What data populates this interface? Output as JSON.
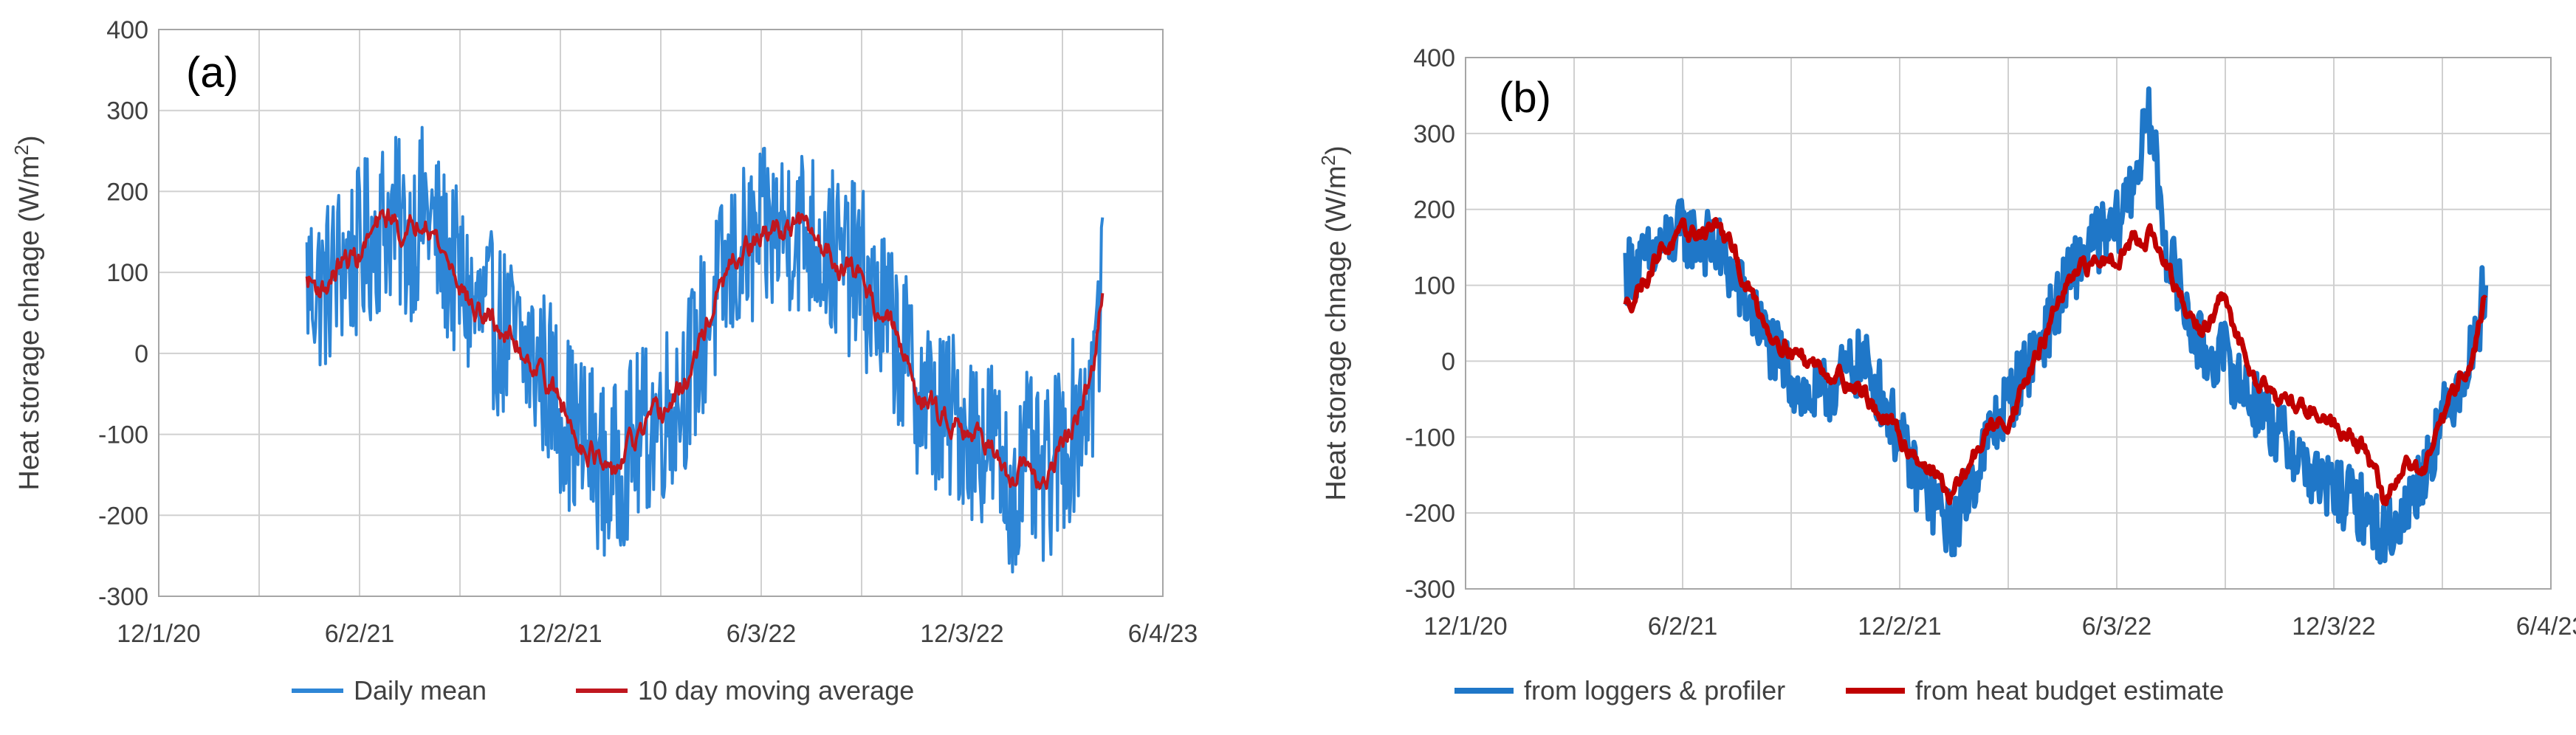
{
  "chart_data": [
    {
      "type": "line",
      "panel_label": "(a)",
      "xlabel": "",
      "ylabel": "Heat storage chnage (W/m²)",
      "ylabel_text": "Heat storage chnage (W/m",
      "ylabel_sup": "2",
      "ylabel_close": ")",
      "ylim": [
        -300,
        400
      ],
      "yticks": [
        -300,
        -200,
        -100,
        0,
        100,
        200,
        300,
        400
      ],
      "ytick_labels": [
        "-300",
        "-200",
        "-100",
        "0",
        "100",
        "200",
        "300",
        "400"
      ],
      "xlim": [
        "2020-12-01",
        "2023-06-04"
      ],
      "xticks": [
        "2020-12-01",
        "2021-06-02",
        "2021-12-02",
        "2022-06-03",
        "2022-12-03",
        "2023-06-04"
      ],
      "xtick_labels": [
        "12/1/20",
        "6/2/21",
        "12/2/21",
        "6/3/22",
        "12/3/22",
        "6/4/23"
      ],
      "grid": true,
      "legend_position": "bottom",
      "series": [
        {
          "name": "Daily mean",
          "color": "#2e86d6",
          "noisy": true,
          "x": [
            "2021-04-15",
            "2021-05-01",
            "2021-05-15",
            "2021-06-01",
            "2021-06-15",
            "2021-07-01",
            "2021-07-15",
            "2021-08-01",
            "2021-08-15",
            "2021-09-01",
            "2021-09-15",
            "2021-10-01",
            "2021-10-15",
            "2021-11-01",
            "2021-11-15",
            "2021-12-01",
            "2021-12-15",
            "2022-01-01",
            "2022-01-15",
            "2022-02-01",
            "2022-02-15",
            "2022-03-01",
            "2022-03-15",
            "2022-04-01",
            "2022-04-15",
            "2022-05-01",
            "2022-05-15",
            "2022-06-01",
            "2022-06-15",
            "2022-07-01",
            "2022-07-15",
            "2022-08-01",
            "2022-08-15",
            "2022-09-01",
            "2022-09-15",
            "2022-10-01",
            "2022-10-15",
            "2022-11-01",
            "2022-11-15",
            "2022-12-01",
            "2022-12-15",
            "2023-01-01",
            "2023-01-15",
            "2023-02-01",
            "2023-02-15",
            "2023-03-01",
            "2023-03-15",
            "2023-04-01",
            "2023-04-10"
          ],
          "y": [
            90,
            80,
            110,
            120,
            150,
            170,
            140,
            180,
            130,
            90,
            50,
            40,
            20,
            0,
            -20,
            -60,
            -100,
            -120,
            -160,
            -120,
            -100,
            -80,
            -60,
            -20,
            40,
            90,
            120,
            140,
            150,
            160,
            150,
            130,
            110,
            100,
            60,
            30,
            -20,
            -60,
            -80,
            -80,
            -100,
            -110,
            -180,
            -130,
            -170,
            -120,
            -90,
            -30,
            80
          ],
          "amplitude": 110
        },
        {
          "name": "10 day moving average",
          "color": "#c0171f",
          "noisy": false,
          "x": [
            "2021-04-15",
            "2021-05-01",
            "2021-05-15",
            "2021-06-01",
            "2021-06-15",
            "2021-07-01",
            "2021-07-15",
            "2021-08-01",
            "2021-08-15",
            "2021-09-01",
            "2021-09-15",
            "2021-10-01",
            "2021-10-15",
            "2021-11-01",
            "2021-11-15",
            "2021-12-01",
            "2021-12-15",
            "2022-01-01",
            "2022-01-15",
            "2022-02-01",
            "2022-02-15",
            "2022-03-01",
            "2022-03-15",
            "2022-04-01",
            "2022-04-15",
            "2022-05-01",
            "2022-05-15",
            "2022-06-01",
            "2022-06-15",
            "2022-07-01",
            "2022-07-15",
            "2022-08-01",
            "2022-08-15",
            "2022-09-01",
            "2022-09-15",
            "2022-10-01",
            "2022-10-15",
            "2022-11-01",
            "2022-11-15",
            "2022-12-01",
            "2022-12-15",
            "2023-01-01",
            "2023-01-15",
            "2023-02-01",
            "2023-02-15",
            "2023-03-01",
            "2023-03-15",
            "2023-04-01",
            "2023-04-10"
          ],
          "y": [
            90,
            80,
            110,
            120,
            150,
            170,
            140,
            180,
            130,
            90,
            50,
            40,
            20,
            0,
            -20,
            -60,
            -100,
            -120,
            -160,
            -120,
            -100,
            -80,
            -60,
            -20,
            40,
            90,
            120,
            140,
            150,
            160,
            150,
            130,
            110,
            100,
            60,
            30,
            -20,
            -60,
            -80,
            -80,
            -100,
            -110,
            -180,
            -130,
            -170,
            -120,
            -90,
            -30,
            80
          ],
          "amplitude": 22
        }
      ]
    },
    {
      "type": "line",
      "panel_label": "(b)",
      "xlabel": "",
      "ylabel": "Heat storage chnage (W/m²)",
      "ylabel_text": "Heat storage chnage (W/m",
      "ylabel_sup": "2",
      "ylabel_close": ")",
      "ylim": [
        -300,
        400
      ],
      "yticks": [
        -300,
        -200,
        -100,
        0,
        100,
        200,
        300,
        400
      ],
      "ytick_labels": [
        "-300",
        "-200",
        "-100",
        "0",
        "100",
        "200",
        "300",
        "400"
      ],
      "xlim": [
        "2020-12-01",
        "2023-06-04"
      ],
      "xticks": [
        "2020-12-01",
        "2021-06-02",
        "2021-12-02",
        "2022-06-03",
        "2022-12-03",
        "2023-06-04"
      ],
      "xtick_labels": [
        "12/1/20",
        "6/2/21",
        "12/2/21",
        "6/3/22",
        "12/3/22",
        "6/4/23"
      ],
      "grid": true,
      "legend_position": "bottom",
      "series": [
        {
          "name": "from loggers & profiler",
          "color": "#1f77c8",
          "noisy": true,
          "x": [
            "2021-04-15",
            "2021-05-01",
            "2021-05-15",
            "2021-06-01",
            "2021-06-15",
            "2021-07-01",
            "2021-07-15",
            "2021-08-01",
            "2021-08-15",
            "2021-09-01",
            "2021-09-15",
            "2021-10-01",
            "2021-10-15",
            "2021-11-01",
            "2021-11-15",
            "2021-12-01",
            "2021-12-15",
            "2022-01-01",
            "2022-01-15",
            "2022-02-01",
            "2022-02-15",
            "2022-03-01",
            "2022-03-15",
            "2022-04-01",
            "2022-04-15",
            "2022-05-01",
            "2022-05-15",
            "2022-06-01",
            "2022-06-15",
            "2022-07-01",
            "2022-07-15",
            "2022-08-01",
            "2022-08-15",
            "2022-09-01",
            "2022-09-15",
            "2022-10-01",
            "2022-10-15",
            "2022-11-01",
            "2022-11-15",
            "2022-12-01",
            "2022-12-15",
            "2023-01-01",
            "2023-01-15",
            "2023-02-01",
            "2023-02-15",
            "2023-03-01",
            "2023-03-15",
            "2023-04-01",
            "2023-04-10"
          ],
          "y": [
            120,
            130,
            150,
            170,
            160,
            150,
            110,
            60,
            20,
            -20,
            -50,
            -40,
            -20,
            0,
            -40,
            -100,
            -150,
            -190,
            -220,
            -160,
            -100,
            -60,
            -20,
            30,
            80,
            130,
            160,
            170,
            230,
            320,
            150,
            60,
            10,
            10,
            -30,
            -60,
            -90,
            -120,
            -150,
            -170,
            -180,
            -200,
            -230,
            -200,
            -150,
            -90,
            -40,
            20,
            110
          ],
          "amplitude": 45
        },
        {
          "name": "from heat budget estimate",
          "color": "#c00000",
          "noisy": false,
          "x": [
            "2021-04-15",
            "2021-05-01",
            "2021-05-15",
            "2021-06-01",
            "2021-06-15",
            "2021-07-01",
            "2021-07-15",
            "2021-08-01",
            "2021-08-15",
            "2021-09-01",
            "2021-09-15",
            "2021-10-01",
            "2021-10-15",
            "2021-11-01",
            "2021-11-15",
            "2021-12-01",
            "2021-12-15",
            "2022-01-01",
            "2022-01-15",
            "2022-02-01",
            "2022-02-15",
            "2022-03-01",
            "2022-03-15",
            "2022-04-01",
            "2022-04-15",
            "2022-05-01",
            "2022-05-15",
            "2022-06-01",
            "2022-06-15",
            "2022-07-01",
            "2022-07-15",
            "2022-08-01",
            "2022-08-15",
            "2022-09-01",
            "2022-09-15",
            "2022-10-01",
            "2022-10-15",
            "2022-11-01",
            "2022-11-15",
            "2022-12-01",
            "2022-12-15",
            "2023-01-01",
            "2023-01-15",
            "2023-02-01",
            "2023-02-15",
            "2023-03-01",
            "2023-03-15",
            "2023-04-01",
            "2023-04-10"
          ],
          "y": [
            70,
            110,
            150,
            160,
            170,
            180,
            140,
            80,
            40,
            20,
            0,
            -10,
            -20,
            -40,
            -70,
            -100,
            -120,
            -150,
            -180,
            -130,
            -90,
            -80,
            -40,
            20,
            80,
            110,
            130,
            140,
            160,
            170,
            120,
            60,
            40,
            80,
            20,
            -20,
            -40,
            -60,
            -60,
            -80,
            -90,
            -120,
            -190,
            -130,
            -150,
            -100,
            -40,
            20,
            90
          ],
          "amplitude": 18
        }
      ]
    }
  ]
}
